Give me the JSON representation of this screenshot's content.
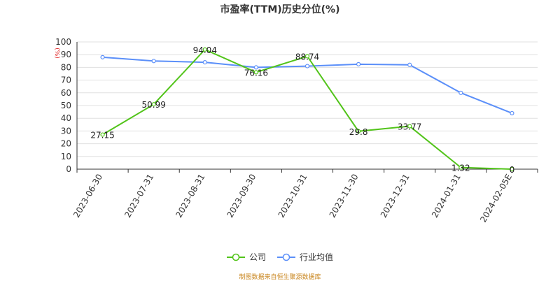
{
  "chart_data": {
    "type": "line",
    "title": "市盈率(TTM)历史分位(%)",
    "ylabel": "(%)",
    "ylim": [
      0,
      100
    ],
    "yticks": [
      0,
      10,
      20,
      30,
      40,
      50,
      60,
      70,
      80,
      90,
      100
    ],
    "categories": [
      "2023-06-30",
      "2023-07-31",
      "2023-08-31",
      "2023-09-30",
      "2023-10-31",
      "2023-11-30",
      "2023-12-31",
      "2024-01-31",
      "2024-02-05E"
    ],
    "series": [
      {
        "name": "公司",
        "color": "#52c41a",
        "values": [
          27.15,
          50.99,
          94.04,
          76.16,
          88.74,
          29.8,
          33.77,
          1.32,
          0
        ],
        "labels": [
          "27.15",
          "50.99",
          "94.04",
          "76.16",
          "88.74",
          "29.8",
          "33.77",
          "1.32",
          "0"
        ]
      },
      {
        "name": "行业均值",
        "color": "#5b8ff9",
        "values": [
          88,
          85,
          84,
          80,
          81,
          82.5,
          82,
          60,
          44
        ]
      }
    ],
    "grid": true,
    "legend_position": "bottom"
  },
  "source": "制图数据来自恒生聚源数据库"
}
